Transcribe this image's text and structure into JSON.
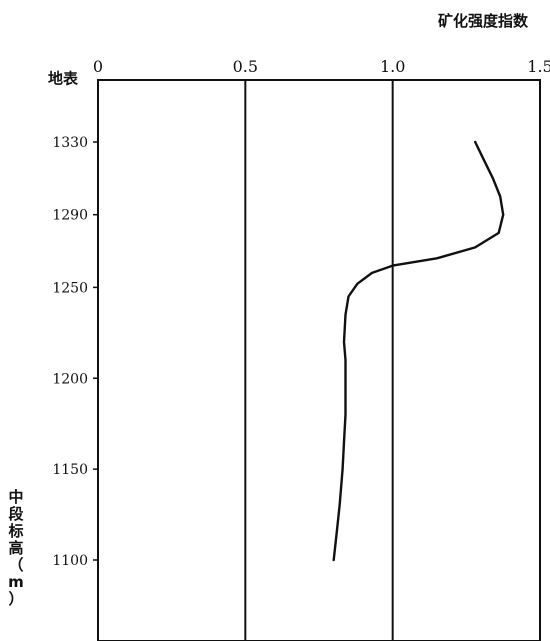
{
  "chart_data": {
    "type": "line",
    "title": "矿化强度指数",
    "ylabel": "中段标高（m）",
    "xlabel": "",
    "xlim": [
      0,
      1.5
    ],
    "ylim": [
      1050,
      1370
    ],
    "y_reversed": true,
    "x_ticks": [
      {
        "value": 0,
        "label": "0"
      },
      {
        "value": 0.5,
        "label": "0.5"
      },
      {
        "value": 1.0,
        "label": "1.0"
      },
      {
        "value": 1.5,
        "label": "1.5"
      }
    ],
    "y_ticks": [
      {
        "value": 1365,
        "label": "地表"
      },
      {
        "value": 1330,
        "label": "1330"
      },
      {
        "value": 1290,
        "label": "1290"
      },
      {
        "value": 1250,
        "label": "1250"
      },
      {
        "value": 1200,
        "label": "1200"
      },
      {
        "value": 1150,
        "label": "1150"
      },
      {
        "value": 1100,
        "label": "1100"
      }
    ],
    "grid": "vertical lines at 0.5 and 1.0",
    "series": [
      {
        "points": [
          {
            "x": 1.28,
            "y": 1330
          },
          {
            "x": 1.31,
            "y": 1320
          },
          {
            "x": 1.34,
            "y": 1310
          },
          {
            "x": 1.365,
            "y": 1300
          },
          {
            "x": 1.375,
            "y": 1290
          },
          {
            "x": 1.36,
            "y": 1280
          },
          {
            "x": 1.28,
            "y": 1272
          },
          {
            "x": 1.15,
            "y": 1266
          },
          {
            "x": 1.0,
            "y": 1262
          },
          {
            "x": 0.93,
            "y": 1258
          },
          {
            "x": 0.88,
            "y": 1252
          },
          {
            "x": 0.85,
            "y": 1245
          },
          {
            "x": 0.84,
            "y": 1235
          },
          {
            "x": 0.835,
            "y": 1220
          },
          {
            "x": 0.84,
            "y": 1210
          },
          {
            "x": 0.84,
            "y": 1195
          },
          {
            "x": 0.84,
            "y": 1180
          },
          {
            "x": 0.835,
            "y": 1165
          },
          {
            "x": 0.83,
            "y": 1150
          },
          {
            "x": 0.82,
            "y": 1130
          },
          {
            "x": 0.81,
            "y": 1115
          },
          {
            "x": 0.8,
            "y": 1100
          }
        ]
      }
    ]
  }
}
